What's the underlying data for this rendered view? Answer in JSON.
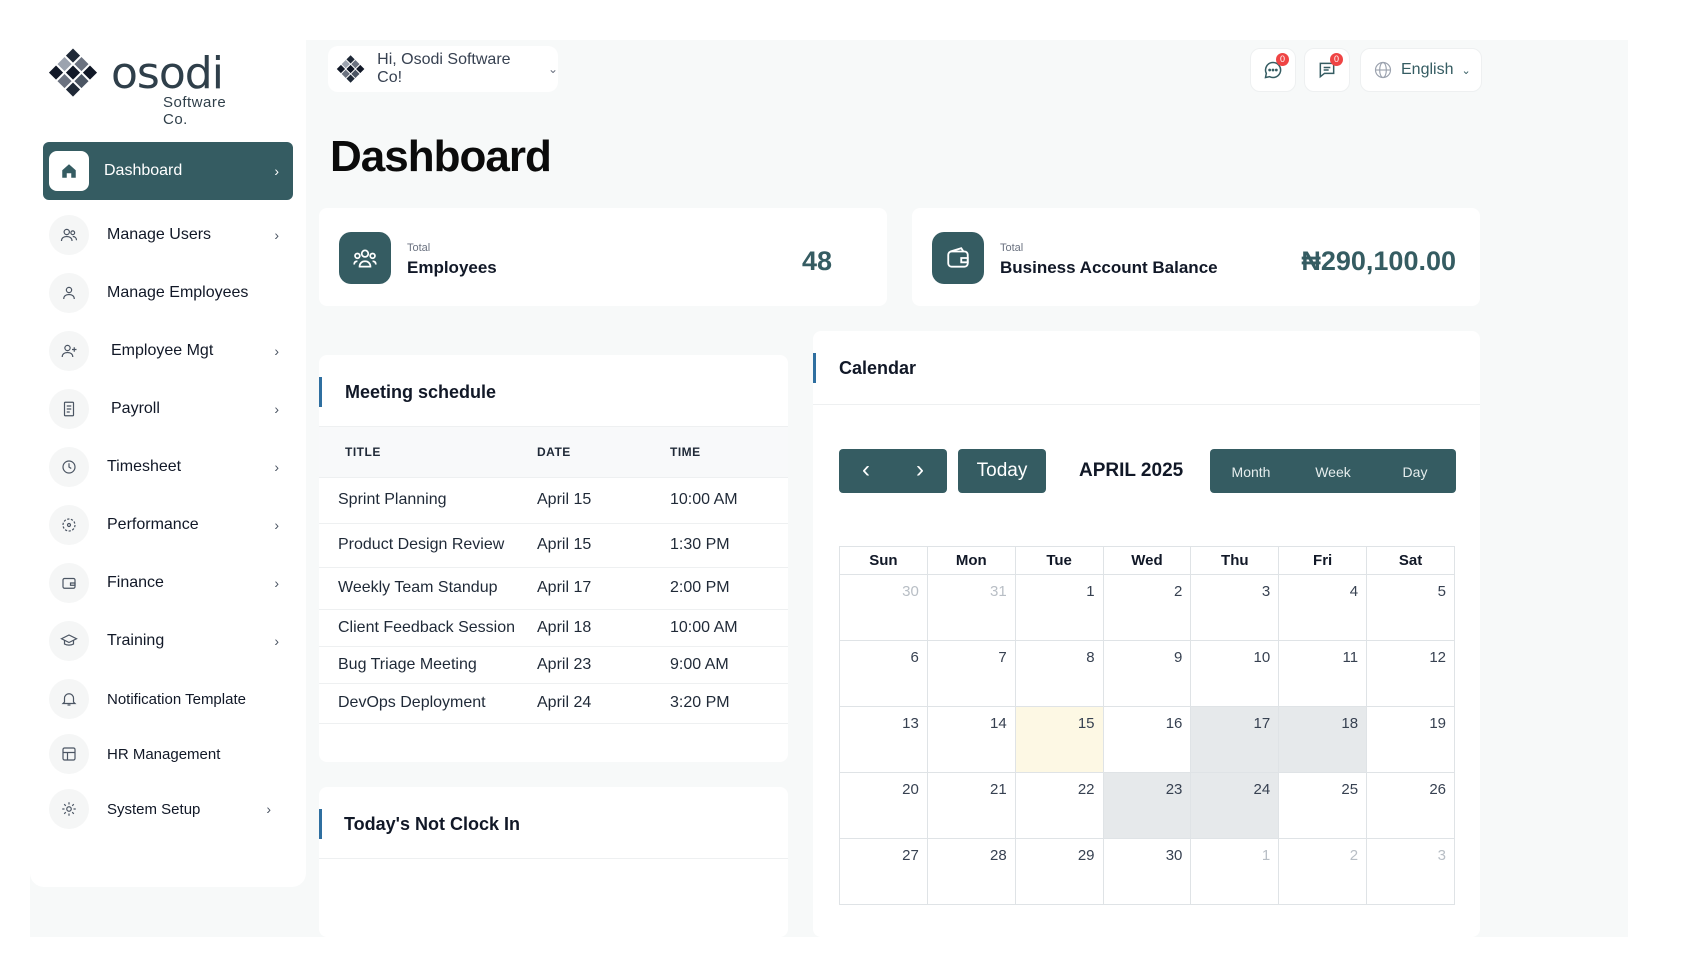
{
  "brand": {
    "name": "osodi",
    "sub": "Software Co."
  },
  "header": {
    "greeting": "Hi, Osodi Software Co!",
    "chat_badge": "0",
    "msg_badge": "0",
    "language": "English"
  },
  "page_title": "Dashboard",
  "sidebar": {
    "items": [
      {
        "label": "Dashboard",
        "icon": "home-icon",
        "chevron": true
      },
      {
        "label": "Manage Users",
        "icon": "users-icon",
        "chevron": true
      },
      {
        "label": "Manage Employees",
        "icon": "user-icon",
        "chevron": false
      },
      {
        "label": "Employee Mgt",
        "icon": "user-plus-icon",
        "chevron": true
      },
      {
        "label": "Payroll",
        "icon": "receipt-icon",
        "chevron": true
      },
      {
        "label": "Timesheet",
        "icon": "clock-icon",
        "chevron": true
      },
      {
        "label": "Performance",
        "icon": "target-icon",
        "chevron": true
      },
      {
        "label": "Finance",
        "icon": "wallet-icon",
        "chevron": true
      },
      {
        "label": "Training",
        "icon": "graduation-cap-icon",
        "chevron": true
      },
      {
        "label": "Notification Template",
        "icon": "bell-icon",
        "chevron": false
      },
      {
        "label": "HR Management",
        "icon": "grid-icon",
        "chevron": false
      },
      {
        "label": "System Setup",
        "icon": "gear-icon",
        "chevron": true
      }
    ]
  },
  "stats": {
    "employees": {
      "small": "Total",
      "label": "Employees",
      "value": "48"
    },
    "balance": {
      "small": "Total",
      "label": "Business Account Balance",
      "value": "₦290,100.00"
    }
  },
  "meetings": {
    "title": "Meeting schedule",
    "columns": [
      "TITLE",
      "DATE",
      "TIME"
    ],
    "rows": [
      {
        "title": "Sprint Planning",
        "date": "April 15",
        "time": "10:00 AM"
      },
      {
        "title": "Product Design Review",
        "date": "April 15",
        "time": "1:30 PM"
      },
      {
        "title": "Weekly Team Standup",
        "date": "April 17",
        "time": "2:00 PM"
      },
      {
        "title": "Client Feedback Session",
        "date": "April 18",
        "time": "10:00 AM"
      },
      {
        "title": "Bug Triage Meeting",
        "date": "April 23",
        "time": "9:00 AM"
      },
      {
        "title": "DevOps Deployment",
        "date": "April 24",
        "time": "3:20 PM"
      }
    ]
  },
  "not_clocked": {
    "title": "Today's Not Clock In"
  },
  "calendar": {
    "title": "Calendar",
    "today_label": "Today",
    "month_label": "APRIL 2025",
    "views": [
      "Month",
      "Week",
      "Day"
    ],
    "weekdays": [
      "Sun",
      "Mon",
      "Tue",
      "Wed",
      "Thu",
      "Fri",
      "Sat"
    ],
    "weeks": [
      [
        {
          "d": "30",
          "dim": true
        },
        {
          "d": "31",
          "dim": true
        },
        {
          "d": "1"
        },
        {
          "d": "2"
        },
        {
          "d": "3"
        },
        {
          "d": "4"
        },
        {
          "d": "5"
        }
      ],
      [
        {
          "d": "6"
        },
        {
          "d": "7"
        },
        {
          "d": "8"
        },
        {
          "d": "9"
        },
        {
          "d": "10"
        },
        {
          "d": "11"
        },
        {
          "d": "12"
        }
      ],
      [
        {
          "d": "13"
        },
        {
          "d": "14"
        },
        {
          "d": "15",
          "today": true
        },
        {
          "d": "16"
        },
        {
          "d": "17",
          "event": true
        },
        {
          "d": "18",
          "event": true
        },
        {
          "d": "19"
        }
      ],
      [
        {
          "d": "20"
        },
        {
          "d": "21"
        },
        {
          "d": "22"
        },
        {
          "d": "23",
          "event": true
        },
        {
          "d": "24",
          "event": true
        },
        {
          "d": "25"
        },
        {
          "d": "26"
        }
      ],
      [
        {
          "d": "27"
        },
        {
          "d": "28"
        },
        {
          "d": "29"
        },
        {
          "d": "30"
        },
        {
          "d": "1",
          "dim": true
        },
        {
          "d": "2",
          "dim": true
        },
        {
          "d": "3",
          "dim": true
        }
      ]
    ]
  },
  "colors": {
    "accent": "#355c62",
    "highlight_today": "#fdf8e4",
    "event": "#e6e9eb",
    "badge": "#ef4444"
  }
}
